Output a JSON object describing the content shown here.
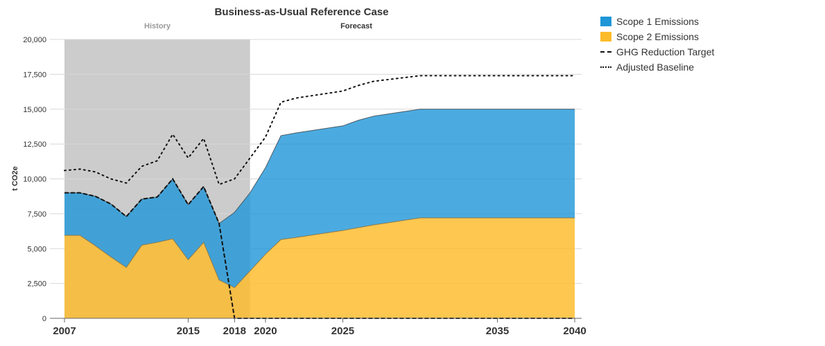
{
  "chart_data": {
    "type": "area",
    "title": "Business-as-Usual Reference Case",
    "ylabel": "t CO2e",
    "ylim": [
      0,
      20000
    ],
    "yticks": [
      0,
      2500,
      5000,
      7500,
      10000,
      12500,
      15000,
      17500,
      20000
    ],
    "ytick_labels": [
      "0",
      "2,500",
      "5,000",
      "7,500",
      "10,000",
      "12,500",
      "15,000",
      "17,500",
      "20,000"
    ],
    "xlim": [
      2007,
      2040
    ],
    "xticks": [
      2007,
      2015,
      2018,
      2020,
      2025,
      2035,
      2040
    ],
    "xtick_labels": [
      "2007",
      "2015",
      "2018",
      "2020",
      "2025",
      "2035",
      "2040"
    ],
    "band_labels": {
      "history": "History",
      "forecast": "Forecast"
    },
    "history_range": [
      2007,
      2019
    ],
    "colors": {
      "scope1": "#1e96d8",
      "scope2": "#fcbb2a",
      "history_band": "#cccccc"
    },
    "x": [
      2007,
      2008,
      2009,
      2010,
      2011,
      2012,
      2013,
      2014,
      2015,
      2016,
      2017,
      2018,
      2019,
      2020,
      2021,
      2022,
      2025,
      2026,
      2027,
      2030,
      2035,
      2040
    ],
    "series": [
      {
        "name": "Scope 2 Emissions",
        "kind": "stack-area",
        "values": [
          5950,
          5950,
          5200,
          4400,
          3650,
          5250,
          5450,
          5700,
          4200,
          5450,
          2750,
          2200,
          3400,
          4600,
          5650,
          5800,
          6300,
          6500,
          6700,
          7200,
          7200,
          7200
        ]
      },
      {
        "name": "Scope 1 Emissions",
        "kind": "stack-area",
        "values": [
          3050,
          3050,
          3550,
          3800,
          3650,
          3300,
          3250,
          4300,
          3950,
          4000,
          4050,
          5400,
          5600,
          6200,
          7450,
          7500,
          7500,
          7700,
          7800,
          7800,
          7800,
          7800
        ]
      },
      {
        "name": "GHG Reduction Target",
        "kind": "dashed-line",
        "x": [
          2007,
          2008,
          2009,
          2010,
          2011,
          2012,
          2013,
          2014,
          2015,
          2016,
          2017,
          2018,
          2018.1,
          2040
        ],
        "values": [
          9000,
          9000,
          8750,
          8200,
          7300,
          8550,
          8700,
          10000,
          8150,
          9450,
          6800,
          0,
          0,
          0
        ]
      },
      {
        "name": "Adjusted Baseline",
        "kind": "dotted-line",
        "x": [
          2007,
          2008,
          2009,
          2010,
          2011,
          2012,
          2013,
          2014,
          2015,
          2016,
          2017,
          2018,
          2019,
          2020,
          2021,
          2022,
          2025,
          2026,
          2027,
          2030,
          2035,
          2040
        ],
        "values": [
          10600,
          10700,
          10500,
          10000,
          9700,
          10900,
          11300,
          13200,
          11500,
          12900,
          9600,
          10000,
          11500,
          13000,
          15500,
          15800,
          16300,
          16700,
          17000,
          17400,
          17400,
          17400
        ]
      }
    ],
    "legend_position": "right",
    "grid": true
  }
}
